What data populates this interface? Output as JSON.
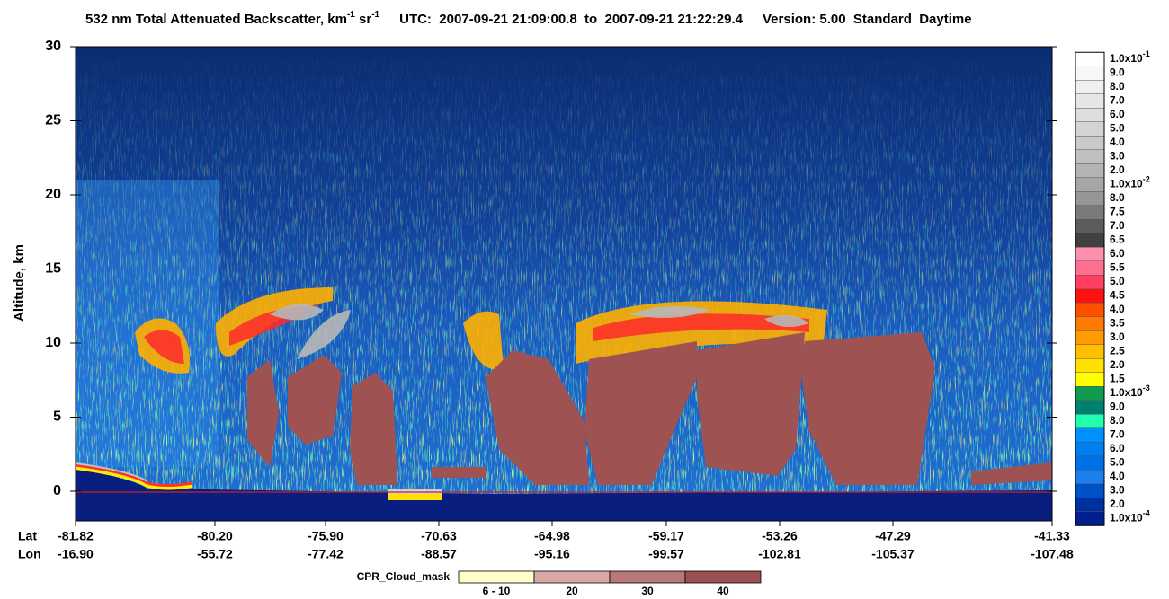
{
  "chart_data": {
    "type": "heatmap",
    "title": {
      "main": "532 nm Total Attenuated Backscatter, km",
      "exp1": "-1",
      "unit2": " sr",
      "exp2": "-1",
      "utc": "UTC:  2007-09-21 21:09:00.8  to  2007-09-21 21:22:29.4",
      "version": "Version: 5.00  Standard  Daytime"
    },
    "ylabel": "Altitude, km",
    "ylim": [
      -2,
      30
    ],
    "yticks": [
      0,
      5,
      10,
      15,
      20,
      25,
      30
    ],
    "x_rows": {
      "lat_label": "Lat",
      "lon_label": "Lon"
    },
    "lat": [
      "-81.82",
      "-80.20",
      "-75.90",
      "-70.63",
      "-64.98",
      "-59.17",
      "-53.26",
      "-47.29",
      "-41.33"
    ],
    "lon": [
      "-16.90",
      "-55.72",
      "-77.42",
      "-88.57",
      "-95.16",
      "-99.57",
      "-102.81",
      "-105.37",
      "-107.48"
    ],
    "colorbar": {
      "labels": [
        {
          "base": "1.0x10",
          "exp": "-1"
        },
        "9.0",
        "8.0",
        "7.0",
        "6.0",
        "5.0",
        "4.0",
        "3.0",
        "2.0",
        {
          "base": "1.0x10",
          "exp": "-2"
        },
        "8.0",
        "7.5",
        "7.0",
        "6.5",
        "6.0",
        "5.5",
        "5.0",
        "4.5",
        "4.0",
        "3.5",
        "3.0",
        "2.5",
        "2.0",
        "1.5",
        {
          "base": "1.0x10",
          "exp": "-3"
        },
        "9.0",
        "8.0",
        "7.0",
        "6.0",
        "5.0",
        "4.0",
        "3.0",
        "2.0",
        {
          "base": "1.0x10",
          "exp": "-4"
        }
      ],
      "colors": [
        "#ffffff",
        "#f7f7f7",
        "#efefef",
        "#e6e6e6",
        "#dddddd",
        "#d4d4d4",
        "#cacaca",
        "#c0c0c0",
        "#b4b4b4",
        "#a6a6a6",
        "#969696",
        "#7a7a7a",
        "#5c5c5c",
        "#404040",
        "#ff8faf",
        "#ff6f8f",
        "#ff4060",
        "#ff1010",
        "#ff5000",
        "#ff7a00",
        "#ff9a00",
        "#ffbf00",
        "#ffe000",
        "#ffff00",
        "#129a50",
        "#00806e",
        "#20ffb0",
        "#0090ff",
        "#0080f0",
        "#0070e8",
        "#1a80f0",
        "#0050c8",
        "#0030a0",
        "#002090"
      ]
    },
    "cloud_mask": {
      "title": "CPR_Cloud_mask",
      "labels": [
        "6 - 10",
        "20",
        "30",
        "40"
      ],
      "colors": [
        "#ffffc8",
        "#d8a8a8",
        "#b87878",
        "#985050"
      ]
    }
  }
}
